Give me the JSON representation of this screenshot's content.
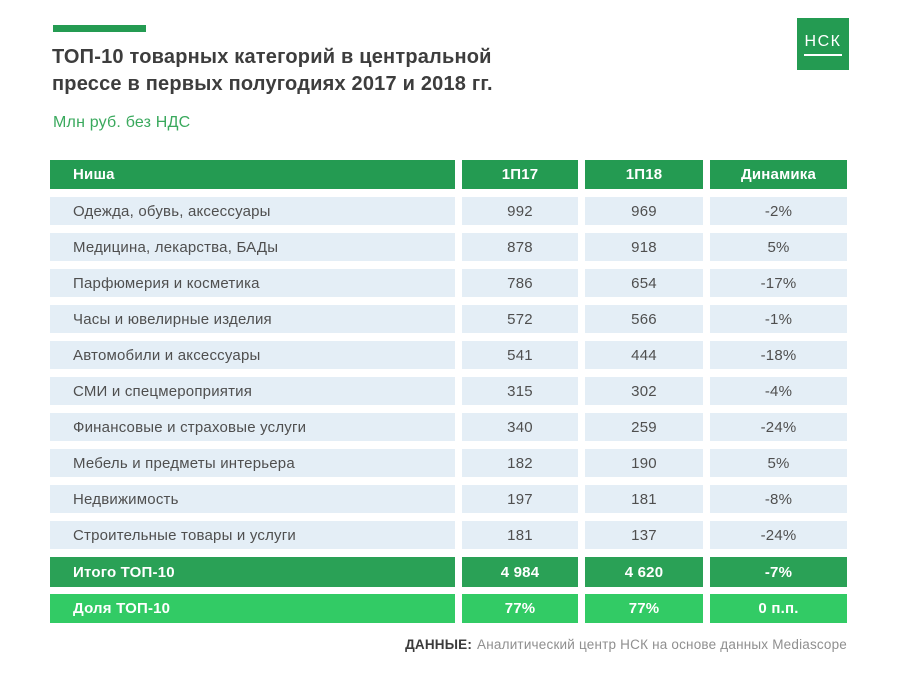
{
  "header": {
    "title_line1": "ТОП-10 товарных категорий в центральной",
    "title_line2": "прессе в первых полугодиях 2017 и 2018 гг.",
    "subtitle": "Млн руб. без НДС",
    "logo_text": "НСК"
  },
  "chart_data": {
    "type": "table",
    "title": "ТОП-10 товарных категорий в центральной прессе в первых полугодиях 2017 и 2018 гг.",
    "units": "Млн руб. без НДС",
    "columns": [
      "Ниша",
      "1П17",
      "1П18",
      "Динамика"
    ],
    "rows": [
      {
        "name": "Одежда, обувь, аксессуары",
        "h1_2017": 992,
        "h1_2018": 969,
        "dynamics": "-2%"
      },
      {
        "name": "Медицина, лекарства, БАДы",
        "h1_2017": 878,
        "h1_2018": 918,
        "dynamics": "5%"
      },
      {
        "name": "Парфюмерия и косметика",
        "h1_2017": 786,
        "h1_2018": 654,
        "dynamics": "-17%"
      },
      {
        "name": "Часы и ювелирные изделия",
        "h1_2017": 572,
        "h1_2018": 566,
        "dynamics": "-1%"
      },
      {
        "name": "Автомобили и аксессуары",
        "h1_2017": 541,
        "h1_2018": 444,
        "dynamics": "-18%"
      },
      {
        "name": "СМИ и спецмероприятия",
        "h1_2017": 315,
        "h1_2018": 302,
        "dynamics": "-4%"
      },
      {
        "name": "Финансовые и страховые услуги",
        "h1_2017": 340,
        "h1_2018": 259,
        "dynamics": "-24%"
      },
      {
        "name": "Мебель и предметы интерьера",
        "h1_2017": 182,
        "h1_2018": 190,
        "dynamics": "5%"
      },
      {
        "name": "Недвижимость",
        "h1_2017": 197,
        "h1_2018": 181,
        "dynamics": "-8%"
      },
      {
        "name": "Строительные товары и услуги",
        "h1_2017": 181,
        "h1_2018": 137,
        "dynamics": "-24%"
      }
    ],
    "total_row": {
      "name": "Итого ТОП-10",
      "h1_2017": "4 984",
      "h1_2018": "4 620",
      "dynamics": "-7%",
      "h1_2017_numeric": 4984,
      "h1_2018_numeric": 4620
    },
    "share_row": {
      "name": "Доля ТОП-10",
      "h1_2017": "77%",
      "h1_2018": "77%",
      "dynamics": "0 п.п."
    }
  },
  "footer": {
    "source_label": "ДАННЫЕ:",
    "source_text": "Аналитический центр НСК на основе данных Mediascope"
  },
  "colors": {
    "green_dark": "#249b52",
    "green_total": "#2aa156",
    "green_share": "#32cb65",
    "row_background": "#e4eef6",
    "title_text": "#3d3d3d",
    "cell_text": "#4f4f4f",
    "subtitle_green": "#3aa95d",
    "source_gray": "#8f8f8f"
  }
}
